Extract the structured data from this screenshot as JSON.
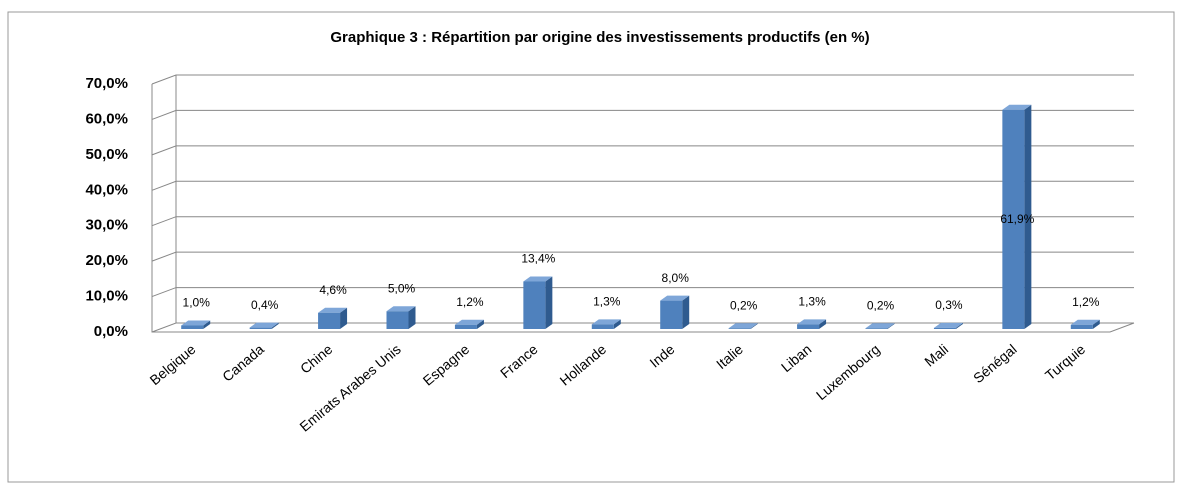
{
  "chart_data": {
    "type": "bar",
    "title": "Graphique 3 : Répartition  par origine des investissements  productifs (en %)",
    "categories": [
      "Belgique",
      "Canada",
      "Chine",
      "Emirats Arabes Unis",
      "Espagne",
      "France",
      "Hollande",
      "Inde",
      "Italie",
      "Liban",
      "Luxembourg",
      "Mali",
      "Sénégal",
      "Turquie"
    ],
    "values": [
      1.0,
      0.4,
      4.6,
      5.0,
      1.2,
      13.4,
      1.3,
      8.0,
      0.2,
      1.3,
      0.2,
      0.3,
      61.9,
      1.2
    ],
    "value_labels": [
      "1,0%",
      "0,4%",
      "4,6%",
      "5,0%",
      "1,2%",
      "13,4%",
      "1,3%",
      "8,0%",
      "0,2%",
      "1,3%",
      "0,2%",
      "0,3%",
      "61,9%",
      "1,2%"
    ],
    "color": "#4f81bd",
    "ylim": [
      0,
      70
    ],
    "yticks": [
      {
        "value": 0,
        "label": "0,0%"
      },
      {
        "value": 10,
        "label": "10,0%"
      },
      {
        "value": 20,
        "label": "20,0%"
      },
      {
        "value": 30,
        "label": "30,0%"
      },
      {
        "value": 40,
        "label": "40,0%"
      },
      {
        "value": 50,
        "label": "50,0%"
      },
      {
        "value": 60,
        "label": "60,0%"
      },
      {
        "value": 70,
        "label": "70,0%"
      }
    ],
    "grid": true
  }
}
